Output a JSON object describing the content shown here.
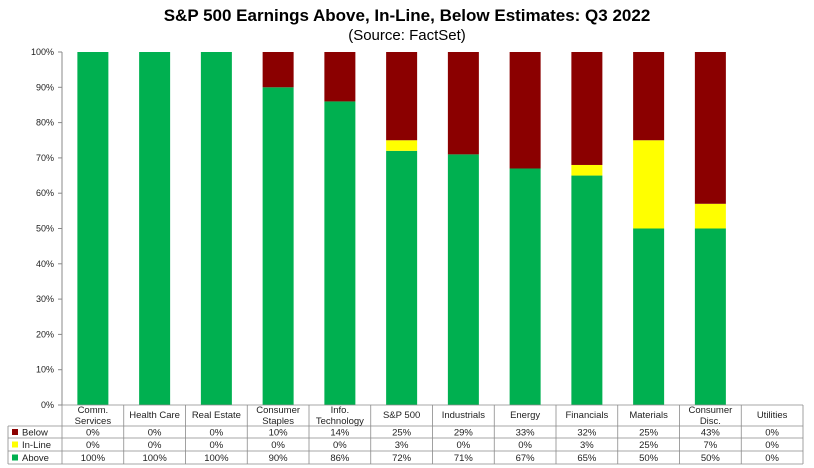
{
  "chart_data": {
    "type": "bar",
    "stacked": true,
    "title": "S&P 500 Earnings Above, In-Line, Below Estimates: Q3 2022",
    "subtitle": "(Source: FactSet)",
    "categories": [
      [
        "Comm.",
        "Services"
      ],
      [
        "Health Care"
      ],
      [
        "Real Estate"
      ],
      [
        "Consumer",
        "Staples"
      ],
      [
        "Info.",
        "Technology"
      ],
      [
        "S&P 500"
      ],
      [
        "Industrials"
      ],
      [
        "Energy"
      ],
      [
        "Financials"
      ],
      [
        "Materials"
      ],
      [
        "Consumer",
        "Disc."
      ],
      [
        "Utilities"
      ]
    ],
    "series": [
      {
        "name": "Below",
        "color": "#8b0000",
        "values": [
          0,
          0,
          0,
          10,
          14,
          25,
          29,
          33,
          32,
          25,
          43,
          0
        ],
        "labels": [
          "0%",
          "0%",
          "0%",
          "10%",
          "14%",
          "25%",
          "29%",
          "33%",
          "32%",
          "25%",
          "43%",
          "0%"
        ]
      },
      {
        "name": "In-Line",
        "color": "#ffff00",
        "values": [
          0,
          0,
          0,
          0,
          0,
          3,
          0,
          0,
          3,
          25,
          7,
          0
        ],
        "labels": [
          "0%",
          "0%",
          "0%",
          "0%",
          "0%",
          "3%",
          "0%",
          "0%",
          "3%",
          "25%",
          "7%",
          "0%"
        ]
      },
      {
        "name": "Above",
        "color": "#00b050",
        "values": [
          100,
          100,
          100,
          90,
          86,
          72,
          71,
          67,
          65,
          50,
          50,
          0
        ],
        "labels": [
          "100%",
          "100%",
          "100%",
          "90%",
          "86%",
          "72%",
          "71%",
          "67%",
          "65%",
          "50%",
          "50%",
          "0%"
        ]
      }
    ],
    "stack_order_bottom_to_top": [
      "Above",
      "In-Line",
      "Below"
    ],
    "ylim": [
      0,
      100
    ],
    "yticks": [
      "0%",
      "10%",
      "20%",
      "30%",
      "40%",
      "50%",
      "60%",
      "70%",
      "80%",
      "90%",
      "100%"
    ],
    "grid": false,
    "legend": "data-table-below"
  }
}
